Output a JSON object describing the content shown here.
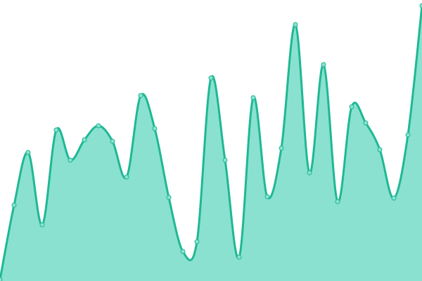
{
  "chart_data": {
    "type": "area",
    "categories": [
      null,
      null,
      null,
      null,
      null,
      null,
      null,
      null,
      null,
      null,
      null,
      null,
      null,
      null,
      null,
      null,
      null,
      null,
      null,
      null,
      null,
      null,
      null,
      null,
      null,
      null,
      null,
      null,
      null,
      null,
      null
    ],
    "values": [
      2,
      108,
      183,
      80,
      215,
      172,
      201,
      221,
      199,
      148,
      264,
      217,
      119,
      42,
      56,
      289,
      172,
      34,
      261,
      120,
      189,
      365,
      154,
      308,
      113,
      248,
      225,
      187,
      118,
      208,
      392
    ],
    "ylim": [
      0,
      400
    ],
    "color": "#1fb894",
    "fill_color": "#8ae1d0"
  }
}
